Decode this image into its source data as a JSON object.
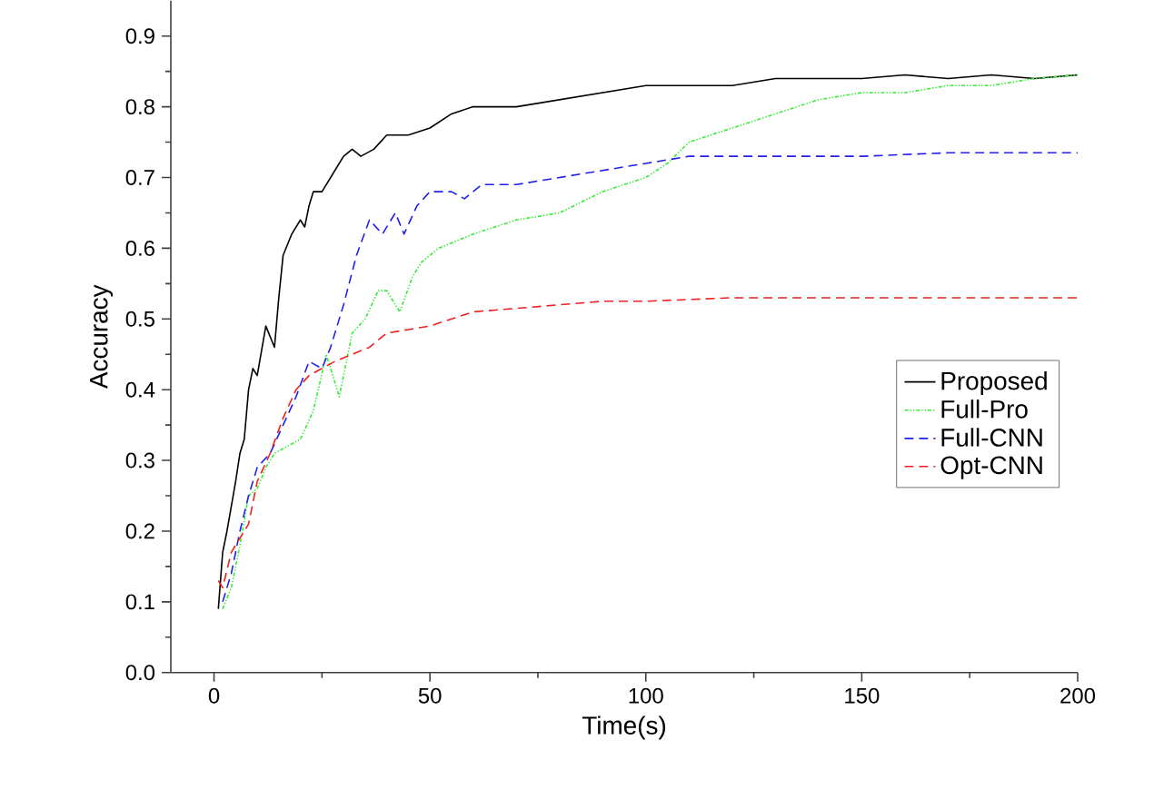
{
  "chart_data": {
    "type": "line",
    "xlabel": "Time(s)",
    "ylabel": "Accuracy",
    "xlim": [
      -10,
      200
    ],
    "xticks": [
      0,
      50,
      100,
      150,
      200
    ],
    "ylim": [
      0,
      0.95
    ],
    "yticks": [
      {
        "value": 0,
        "label": "0.0"
      },
      {
        "value": 0.1,
        "label": "0.1"
      },
      {
        "value": 0.2,
        "label": "0.2"
      },
      {
        "value": 0.3,
        "label": "0.3"
      },
      {
        "value": 0.4,
        "label": "0.4"
      },
      {
        "value": 0.5,
        "label": "0.5"
      },
      {
        "value": 0.6,
        "label": "0.6"
      },
      {
        "value": 0.7,
        "label": "0.7"
      },
      {
        "value": 0.8,
        "label": "0.8"
      },
      {
        "value": 0.9,
        "label": "0.9"
      }
    ],
    "grid": false,
    "legend": "right",
    "marker": "none",
    "series": [
      {
        "name": "Proposed",
        "color": "#000000",
        "line_style": "solid",
        "x": [
          1,
          2,
          3,
          5,
          6,
          7,
          8,
          9,
          10,
          12,
          14,
          15,
          16,
          18,
          20,
          21,
          22,
          23,
          25,
          27,
          30,
          32,
          34,
          37,
          40,
          45,
          50,
          55,
          60,
          70,
          80,
          90,
          100,
          110,
          120,
          130,
          140,
          150,
          160,
          170,
          180,
          190,
          200
        ],
        "values": [
          0.09,
          0.17,
          0.2,
          0.27,
          0.31,
          0.33,
          0.4,
          0.43,
          0.42,
          0.49,
          0.46,
          0.53,
          0.59,
          0.62,
          0.64,
          0.63,
          0.66,
          0.68,
          0.68,
          0.7,
          0.73,
          0.74,
          0.73,
          0.74,
          0.76,
          0.76,
          0.77,
          0.79,
          0.8,
          0.8,
          0.81,
          0.82,
          0.83,
          0.83,
          0.83,
          0.84,
          0.84,
          0.84,
          0.845,
          0.84,
          0.845,
          0.84,
          0.845
        ]
      },
      {
        "name": "Full-Pro",
        "color": "#33ee33",
        "line_style": "dotted",
        "x": [
          2,
          4,
          6,
          8,
          10,
          12,
          14,
          17,
          20,
          23,
          26,
          29,
          32,
          35,
          38,
          40,
          43,
          46,
          48,
          52,
          60,
          70,
          80,
          90,
          100,
          105,
          110,
          120,
          130,
          140,
          150,
          160,
          170,
          180,
          190,
          200
        ],
        "values": [
          0.09,
          0.12,
          0.18,
          0.25,
          0.26,
          0.29,
          0.31,
          0.32,
          0.33,
          0.37,
          0.45,
          0.39,
          0.48,
          0.5,
          0.54,
          0.54,
          0.51,
          0.56,
          0.58,
          0.6,
          0.62,
          0.64,
          0.65,
          0.68,
          0.7,
          0.72,
          0.75,
          0.77,
          0.79,
          0.81,
          0.82,
          0.82,
          0.83,
          0.83,
          0.84,
          0.845
        ]
      },
      {
        "name": "Full-CNN",
        "color": "#2020ee",
        "line_style": "dashed",
        "x": [
          2,
          4,
          6,
          8,
          10,
          13,
          16,
          19,
          22,
          25,
          27,
          30,
          33,
          36,
          39,
          42,
          44,
          47,
          50,
          55,
          58,
          62,
          70,
          80,
          90,
          100,
          110,
          130,
          150,
          170,
          200
        ],
        "values": [
          0.1,
          0.14,
          0.2,
          0.25,
          0.29,
          0.31,
          0.35,
          0.39,
          0.44,
          0.43,
          0.46,
          0.52,
          0.59,
          0.64,
          0.62,
          0.65,
          0.62,
          0.66,
          0.68,
          0.68,
          0.67,
          0.69,
          0.69,
          0.7,
          0.71,
          0.72,
          0.73,
          0.73,
          0.73,
          0.735,
          0.735
        ]
      },
      {
        "name": "Opt-CNN",
        "color": "#ee2020",
        "line_style": "dashed",
        "x": [
          1,
          2,
          4,
          6,
          8,
          10,
          13,
          16,
          19,
          22,
          25,
          28,
          32,
          36,
          40,
          45,
          50,
          55,
          60,
          70,
          80,
          90,
          100,
          120,
          150,
          200
        ],
        "values": [
          0.13,
          0.12,
          0.17,
          0.19,
          0.21,
          0.27,
          0.31,
          0.36,
          0.4,
          0.42,
          0.43,
          0.44,
          0.45,
          0.46,
          0.48,
          0.485,
          0.49,
          0.5,
          0.51,
          0.515,
          0.52,
          0.525,
          0.525,
          0.53,
          0.53,
          0.53
        ]
      }
    ]
  }
}
